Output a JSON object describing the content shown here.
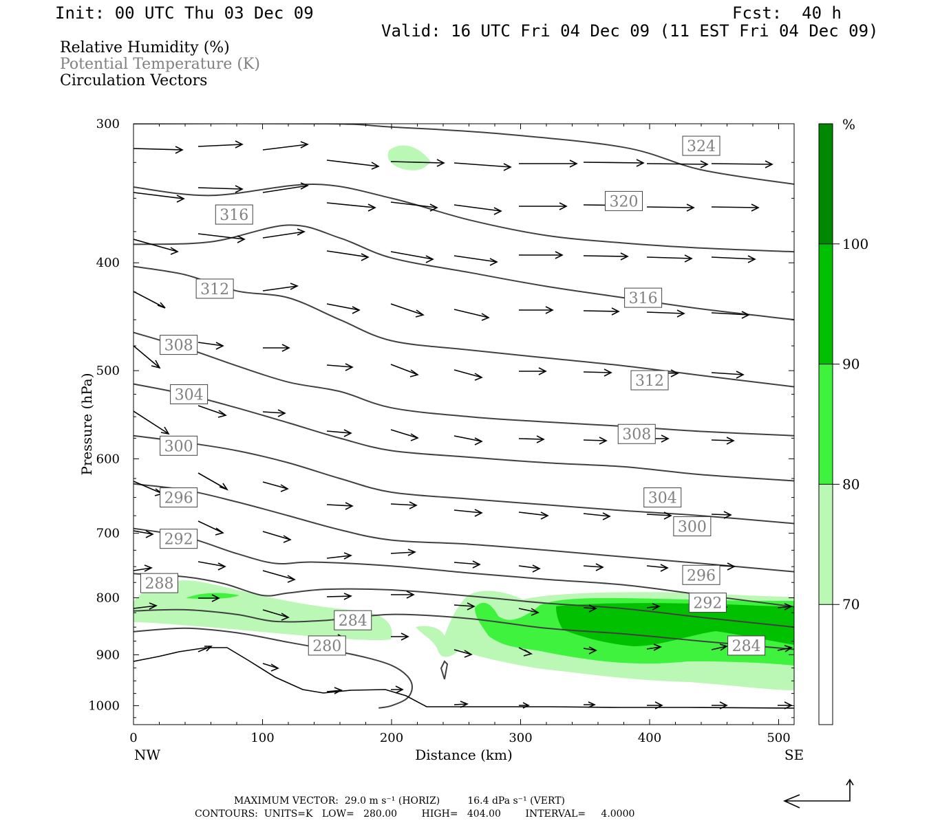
{
  "header": {
    "init": "Init: 00 UTC Thu 03 Dec 09",
    "fcst": "Fcst:  40 h",
    "valid": "Valid: 16 UTC Fri 04 Dec 09 (11 EST Fri 04 Dec 09)"
  },
  "fields": {
    "rh": "Relative Humidity (%)",
    "theta": "Potential Temperature (K)",
    "vectors": "Circulation Vectors"
  },
  "colors": {
    "rh70": "#bbf7b5",
    "rh80": "#3ef23e",
    "rh90": "#00c000",
    "rh100": "#008800",
    "contour": "#404040",
    "terrain": "#000000",
    "theta_label": "#808080"
  },
  "chart_data": {
    "type": "cross-section",
    "xlabel": "Distance (km)",
    "ylabel": "Pressure (hPa)",
    "xlim": [
      0,
      512
    ],
    "ylim": [
      1040,
      300
    ],
    "y_scale": "log",
    "x_ticks": [
      0,
      100,
      200,
      300,
      400,
      500
    ],
    "x_tick_labels": [
      "0",
      "100",
      "200",
      "300",
      "400",
      "500"
    ],
    "x_end_labels": [
      "NW",
      "SE"
    ],
    "y_ticks": [
      300,
      400,
      500,
      600,
      700,
      800,
      900,
      1000
    ],
    "y_tick_labels": [
      "300",
      "400",
      "500",
      "600",
      "700",
      "800",
      "900",
      "1000"
    ],
    "colorbar": {
      "unit": "%",
      "levels": [
        70,
        80,
        90,
        100
      ],
      "level_labels": [
        "70",
        "80",
        "90",
        "100"
      ],
      "colors": [
        "#bbf7b5",
        "#3ef23e",
        "#00c000",
        "#008800"
      ]
    },
    "theta_contours": [
      {
        "level": 280,
        "label": "280",
        "points": [
          [
            0,
            858
          ],
          [
            40,
            852
          ],
          [
            80,
            860
          ],
          [
            120,
            877
          ],
          [
            150,
            890
          ],
          [
            180,
            905
          ],
          [
            200,
            920
          ],
          [
            212,
            940
          ],
          [
            216,
            962
          ],
          [
            212,
            985
          ],
          [
            200,
            1000
          ],
          [
            190,
            1005
          ]
        ]
      },
      {
        "level": 284,
        "label": "284",
        "points": [
          [
            0,
            822
          ],
          [
            40,
            820
          ],
          [
            80,
            828
          ],
          [
            110,
            840
          ],
          [
            150,
            838
          ],
          [
            200,
            828
          ],
          [
            260,
            835
          ],
          [
            320,
            852
          ],
          [
            380,
            862
          ],
          [
            440,
            875
          ],
          [
            512,
            890
          ]
        ]
      },
      {
        "level": 288,
        "label": "288",
        "points": [
          [
            0,
            761
          ],
          [
            40,
            766
          ],
          [
            70,
            777
          ],
          [
            100,
            796
          ],
          [
            120,
            792
          ],
          [
            150,
            786
          ],
          [
            200,
            787
          ],
          [
            260,
            797
          ],
          [
            320,
            809
          ],
          [
            380,
            818
          ],
          [
            440,
            833
          ],
          [
            512,
            850
          ]
        ]
      },
      {
        "level": 292,
        "label": "292",
        "points": [
          [
            0,
            693
          ],
          [
            40,
            705
          ],
          [
            80,
            730
          ],
          [
            110,
            745
          ],
          [
            140,
            743
          ],
          [
            200,
            749
          ],
          [
            260,
            760
          ],
          [
            320,
            770
          ],
          [
            380,
            779
          ],
          [
            440,
            795
          ],
          [
            512,
            815
          ]
        ]
      },
      {
        "level": 296,
        "label": "296",
        "points": [
          [
            0,
            632
          ],
          [
            40,
            640
          ],
          [
            80,
            656
          ],
          [
            120,
            675
          ],
          [
            160,
            695
          ],
          [
            200,
            710
          ],
          [
            260,
            716
          ],
          [
            320,
            725
          ],
          [
            380,
            735
          ],
          [
            440,
            745
          ],
          [
            512,
            758
          ]
        ]
      },
      {
        "level": 300,
        "label": "300",
        "points": [
          [
            0,
            572
          ],
          [
            40,
            580
          ],
          [
            80,
            590
          ],
          [
            120,
            605
          ],
          [
            160,
            625
          ],
          [
            200,
            643
          ],
          [
            260,
            652
          ],
          [
            320,
            660
          ],
          [
            380,
            668
          ],
          [
            440,
            675
          ],
          [
            512,
            686
          ]
        ]
      },
      {
        "level": 304,
        "label": "304",
        "points": [
          [
            0,
            514
          ],
          [
            40,
            525
          ],
          [
            80,
            540
          ],
          [
            120,
            557
          ],
          [
            160,
            575
          ],
          [
            200,
            590
          ],
          [
            260,
            598
          ],
          [
            320,
            605
          ],
          [
            380,
            610
          ],
          [
            440,
            620
          ],
          [
            512,
            628
          ]
        ]
      },
      {
        "level": 308,
        "label": "308",
        "points": [
          [
            0,
            462
          ],
          [
            40,
            477
          ],
          [
            80,
            495
          ],
          [
            120,
            512
          ],
          [
            160,
            522
          ],
          [
            200,
            540
          ],
          [
            260,
            550
          ],
          [
            320,
            556
          ],
          [
            380,
            561
          ],
          [
            440,
            567
          ],
          [
            512,
            572
          ]
        ]
      },
      {
        "level": 312,
        "label": "312",
        "points": [
          [
            0,
            403
          ],
          [
            40,
            410
          ],
          [
            80,
            424
          ],
          [
            120,
            430
          ],
          [
            160,
            450
          ],
          [
            200,
            470
          ],
          [
            260,
            479
          ],
          [
            320,
            487
          ],
          [
            380,
            495
          ],
          [
            440,
            505
          ],
          [
            512,
            517
          ]
        ]
      },
      {
        "level": 316,
        "label": "316",
        "points": [
          [
            0,
            385
          ],
          [
            60,
            383
          ],
          [
            120,
            370
          ],
          [
            160,
            380
          ],
          [
            200,
            396
          ],
          [
            260,
            408
          ],
          [
            320,
            420
          ],
          [
            380,
            430
          ],
          [
            440,
            440
          ],
          [
            512,
            450
          ]
        ]
      },
      {
        "level": 320,
        "label": "320",
        "points": [
          [
            0,
            342
          ],
          [
            60,
            348
          ],
          [
            140,
            340
          ],
          [
            200,
            350
          ],
          [
            260,
            366
          ],
          [
            320,
            378
          ],
          [
            380,
            384
          ],
          [
            440,
            388
          ],
          [
            512,
            391
          ]
        ]
      },
      {
        "level": 324,
        "label": "324",
        "points": [
          [
            0,
            300
          ],
          [
            150,
            300
          ],
          [
            200,
            302
          ],
          [
            280,
            306
          ],
          [
            380,
            315
          ],
          [
            440,
            330
          ],
          [
            512,
            340
          ]
        ]
      }
    ]
  },
  "footer": {
    "line1": "MAXIMUM VECTOR:  29.0 m s⁻¹ (HORIZ)         16.4 dPa s⁻¹ (VERT)",
    "line2": "CONTOURS:  UNITS=K   LOW=   280.00        HIGH=   404.00        INTERVAL=     4.0000"
  }
}
